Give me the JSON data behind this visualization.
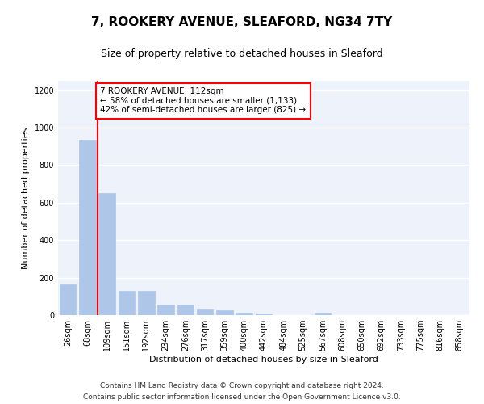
{
  "title": "7, ROOKERY AVENUE, SLEAFORD, NG34 7TY",
  "subtitle": "Size of property relative to detached houses in Sleaford",
  "xlabel": "Distribution of detached houses by size in Sleaford",
  "ylabel": "Number of detached properties",
  "bar_labels": [
    "26sqm",
    "68sqm",
    "109sqm",
    "151sqm",
    "192sqm",
    "234sqm",
    "276sqm",
    "317sqm",
    "359sqm",
    "400sqm",
    "442sqm",
    "484sqm",
    "525sqm",
    "567sqm",
    "608sqm",
    "650sqm",
    "692sqm",
    "733sqm",
    "775sqm",
    "816sqm",
    "858sqm"
  ],
  "bar_values": [
    163,
    935,
    650,
    130,
    128,
    58,
    55,
    30,
    28,
    12,
    10,
    0,
    0,
    15,
    0,
    0,
    0,
    0,
    0,
    0,
    0
  ],
  "bar_color": "#aec6e8",
  "bar_edgecolor": "#aec6e8",
  "property_line_color": "red",
  "annotation_text": "7 ROOKERY AVENUE: 112sqm\n← 58% of detached houses are smaller (1,133)\n42% of semi-detached houses are larger (825) →",
  "annotation_box_color": "white",
  "annotation_box_edgecolor": "red",
  "ylim": [
    0,
    1250
  ],
  "yticks": [
    0,
    200,
    400,
    600,
    800,
    1000,
    1200
  ],
  "footer_line1": "Contains HM Land Registry data © Crown copyright and database right 2024.",
  "footer_line2": "Contains public sector information licensed under the Open Government Licence v3.0.",
  "background_color": "#eef3fb",
  "grid_color": "white",
  "title_fontsize": 11,
  "subtitle_fontsize": 9,
  "axis_label_fontsize": 8,
  "tick_fontsize": 7,
  "annotation_fontsize": 7.5,
  "footer_fontsize": 6.5
}
